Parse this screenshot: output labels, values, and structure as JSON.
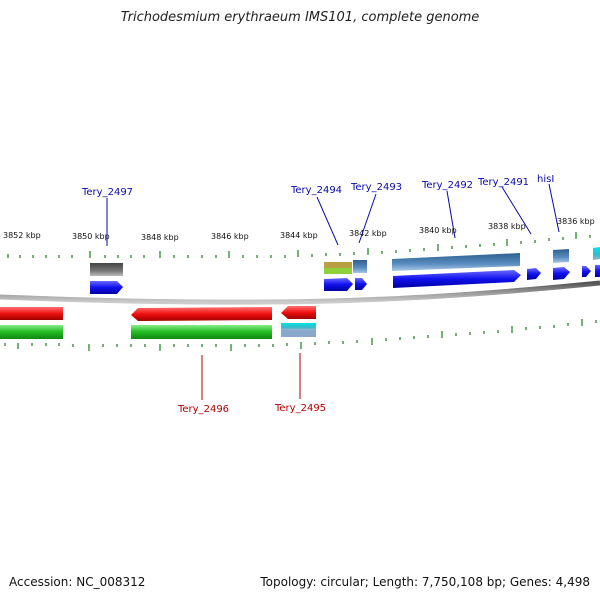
{
  "title": "Trichodesmium erythraeum IMS101, complete genome",
  "footer": {
    "accession": "Accession: NC_008312",
    "summary": "Topology: circular; Length: 7,750,108 bp; Genes: 4,498"
  },
  "scale_labels": [
    "3852 kbp",
    "3850 kbp",
    "3848 kbp",
    "3846 kbp",
    "3844 kbp",
    "3842 kbp",
    "3840 kbp",
    "3838 kbp",
    "3836 kbp"
  ],
  "gene_labels_top": [
    "Tery_2497",
    "Tery_2494",
    "Tery_2493",
    "Tery_2492",
    "Tery_2491",
    "hisI"
  ],
  "gene_labels_bottom": [
    "Tery_2496",
    "Tery_2495"
  ],
  "colors": {
    "forward_cds": "#1010ee",
    "reverse_cds": "#ee1010",
    "feature_green": "#22bb22",
    "backbone": "#888888",
    "tick_green": "#2a8a2a",
    "label_blue": "#0a0aa8",
    "label_red": "#b00000"
  }
}
